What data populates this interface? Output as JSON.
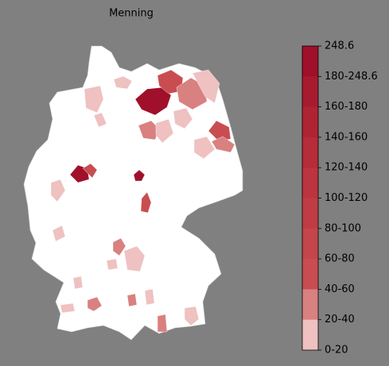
{
  "title": "Menning",
  "colorbar": {
    "labels": [
      "248.6",
      "180-248.6",
      "160-180",
      "140-160",
      "120-140",
      "100-120",
      "80-100",
      "60-80",
      "40-60",
      "20-40",
      "0-20"
    ],
    "colors": [
      "#a0102a",
      "#a81b2e",
      "#af2433",
      "#b62c39",
      "#bb343f",
      "#c03c44",
      "#c4454a",
      "#c94d50",
      "#d98080",
      "#efc1c1",
      "#ffffff"
    ]
  }
}
